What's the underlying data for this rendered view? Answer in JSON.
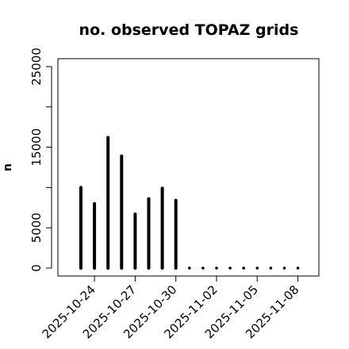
{
  "chart_data": {
    "type": "bar",
    "title": "no. observed TOPAZ grids",
    "xlabel": "",
    "ylabel": "n",
    "ylim": [
      0,
      26000
    ],
    "yticks": [
      0,
      5000,
      10000,
      15000,
      20000,
      25000
    ],
    "ytick_labels": [
      "0",
      "5000",
      "",
      "15000",
      "",
      "25000"
    ],
    "x": [
      "2025-10-23",
      "2025-10-24",
      "2025-10-25",
      "2025-10-26",
      "2025-10-27",
      "2025-10-28",
      "2025-10-29",
      "2025-10-30",
      "2025-10-31",
      "2025-11-01",
      "2025-11-02",
      "2025-11-03",
      "2025-11-04",
      "2025-11-05",
      "2025-11-06",
      "2025-11-07",
      "2025-11-08"
    ],
    "values": [
      10000,
      8000,
      16200,
      13900,
      6700,
      8600,
      9900,
      8400,
      0,
      0,
      0,
      0,
      0,
      0,
      0,
      0,
      0
    ],
    "xtick_labels": [
      {
        "date": "2025-10-24",
        "label": "2025-10-24",
        "color": "#000000"
      },
      {
        "date": "2025-10-27",
        "label": "2025-10-27",
        "color": "#000000"
      },
      {
        "date": "2025-10-30",
        "label": "2025-10-30",
        "color": "#228b22"
      },
      {
        "date": "2025-11-02",
        "label": "2025-11-02",
        "color": "#000000"
      },
      {
        "date": "2025-11-05",
        "label": "2025-11-05",
        "color": "#000000"
      },
      {
        "date": "2025-11-08",
        "label": "2025-11-08",
        "color": "#000000"
      }
    ],
    "grid": false,
    "bar_color": "#000000"
  }
}
